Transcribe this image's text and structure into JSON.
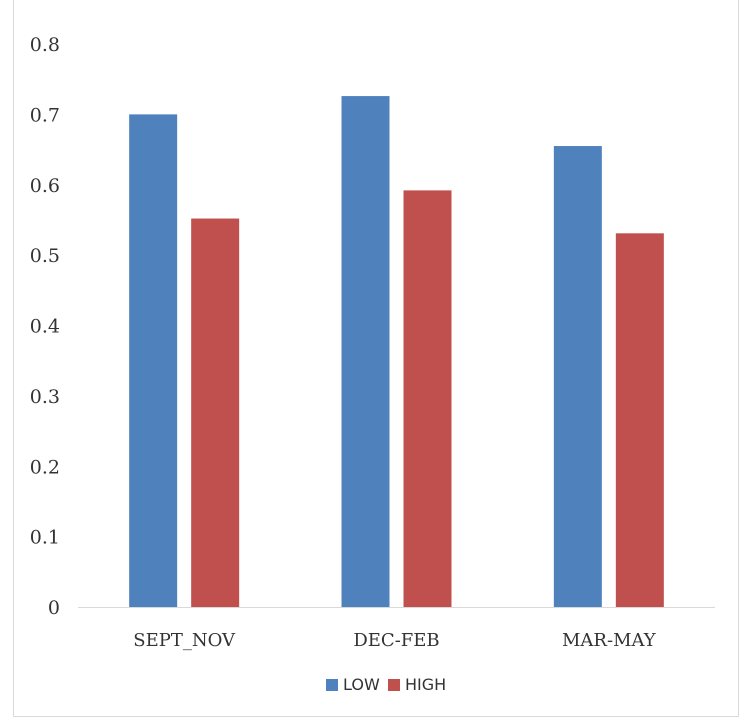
{
  "chart_data": {
    "type": "bar",
    "categories": [
      "SEPT_NOV",
      "DEC-FEB",
      "MAR-MAY"
    ],
    "series": [
      {
        "name": "LOW",
        "values": [
          0.7,
          0.726,
          0.655
        ],
        "color": "#4f81bd"
      },
      {
        "name": "HIGH",
        "values": [
          0.552,
          0.592,
          0.531
        ],
        "color": "#c0504d"
      }
    ],
    "ylim": [
      0,
      0.8
    ],
    "yticks": [
      0,
      0.1,
      0.2,
      0.3,
      0.4,
      0.5,
      0.6,
      0.7,
      0.8
    ],
    "ytick_labels": [
      "0",
      "0.1",
      "0.2",
      "0.3",
      "0.4",
      "0.5",
      "0.6",
      "0.7",
      "0.8"
    ],
    "grid": false,
    "legend_position": "bottom",
    "title": "",
    "xlabel": "",
    "ylabel": ""
  }
}
